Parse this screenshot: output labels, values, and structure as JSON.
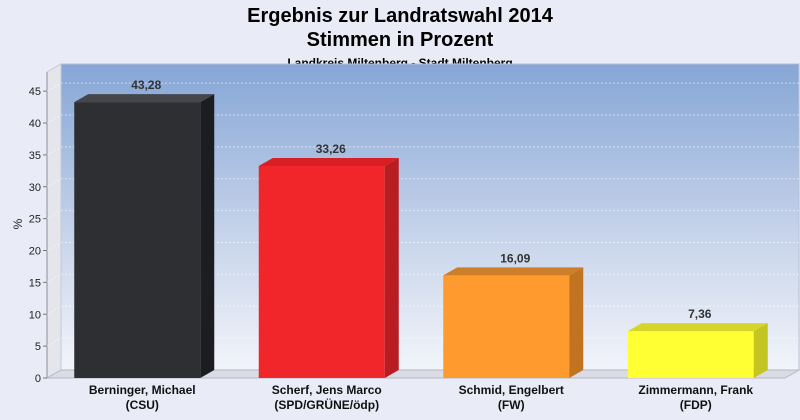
{
  "chart_data": {
    "type": "bar",
    "title": "Ergebnis zur Landratswahl 2014",
    "title_line2": "Stimmen in Prozent",
    "subtitle": "Landkreis Miltenberg - Stadt Miltenberg",
    "ylabel": "%",
    "ylim": [
      0,
      48
    ],
    "yticks": [
      0,
      5,
      10,
      15,
      20,
      25,
      30,
      35,
      40,
      45
    ],
    "grid": true,
    "categories": [
      {
        "name": "Berninger, Michael",
        "party": "(CSU)"
      },
      {
        "name": "Scherf, Jens Marco",
        "party": "(SPD/GRÜNE/ödp)"
      },
      {
        "name": "Schmid, Engelbert",
        "party": "(FW)"
      },
      {
        "name": "Zimmermann, Frank",
        "party": "(FDP)"
      }
    ],
    "values": [
      43.28,
      33.26,
      16.09,
      7.36
    ],
    "value_labels": [
      "43,28",
      "33,26",
      "16,09",
      "7,36"
    ],
    "colors": [
      "#2e2f33",
      "#f0262b",
      "#ff9a2e",
      "#ffff33"
    ],
    "side_colors": [
      "#1c1d20",
      "#b81d21",
      "#c2731f",
      "#c4c422"
    ],
    "top_colors": [
      "#44464c",
      "#d81f24",
      "#cc7f28",
      "#d6d62a"
    ]
  }
}
